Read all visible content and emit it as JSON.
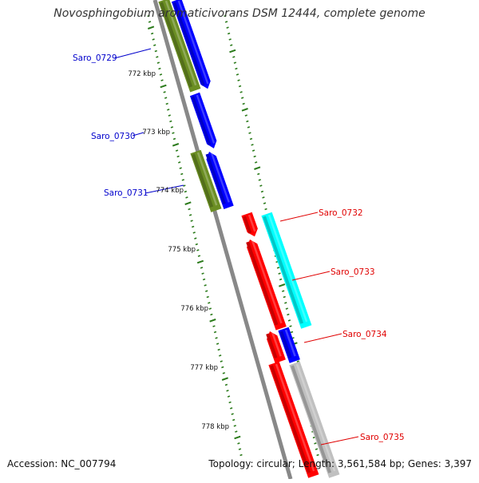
{
  "title": "Novosphingobium aromaticivorans DSM 12444, complete genome",
  "footer": {
    "accession": "Accession: NC_007794",
    "topology": "Topology: circular; Length: 3,561,584 bp; Genes: 3,397"
  },
  "colors": {
    "backbone": "#888888",
    "tick": "#2a7a1a",
    "label_forward": "#0000cc",
    "label_reverse": "#e00000",
    "gene_blue": "#0000ff",
    "gene_olive": "#6b8e23",
    "gene_red": "#ff0000",
    "gene_cyan": "#00ffff",
    "gene_grey": "#c0c0c0"
  },
  "ruler": {
    "unit": "kbp",
    "labels": [
      "772 kbp",
      "773 kbp",
      "774 kbp",
      "775 kbp",
      "776 kbp",
      "777 kbp",
      "778 kbp"
    ]
  },
  "genes": [
    {
      "label": "Saro_0729",
      "strand": "forward"
    },
    {
      "label": "Saro_0730",
      "strand": "forward"
    },
    {
      "label": "Saro_0731",
      "strand": "forward"
    },
    {
      "label": "Saro_0732",
      "strand": "reverse"
    },
    {
      "label": "Saro_0733",
      "strand": "reverse"
    },
    {
      "label": "Saro_0734",
      "strand": "reverse"
    },
    {
      "label": "Saro_0735",
      "strand": "reverse"
    }
  ]
}
